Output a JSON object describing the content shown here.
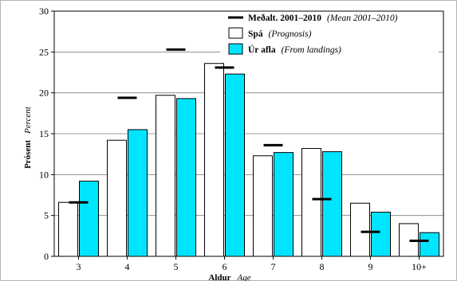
{
  "chart_data": {
    "type": "bar",
    "categories": [
      "3",
      "4",
      "5",
      "6",
      "7",
      "8",
      "9",
      "10+"
    ],
    "series": [
      {
        "name": "Spá",
        "name_en": "(Prognosis)",
        "color": "#ffffff",
        "values": [
          6.6,
          14.2,
          19.7,
          23.6,
          12.3,
          13.2,
          6.5,
          4.0
        ]
      },
      {
        "name": "Úr afla",
        "name_en": "(From landings)",
        "color": "#00e5ff",
        "values": [
          9.2,
          15.5,
          19.3,
          22.3,
          12.7,
          12.8,
          5.4,
          2.9
        ]
      }
    ],
    "mean_marker": {
      "name": "Meðalt. 2001–2010",
      "name_en": "(Mean 2001–2010)",
      "color": "#000000",
      "values": [
        6.6,
        19.4,
        25.3,
        23.1,
        13.6,
        7.0,
        3.0,
        1.9
      ]
    },
    "ylim": [
      0,
      30
    ],
    "yticks": [
      0,
      5,
      10,
      15,
      20,
      25,
      30
    ],
    "xlabel": "Aldur",
    "xlabel_en": "Age",
    "ylabel": "Prósent",
    "ylabel_en": "Percent",
    "grid": true,
    "legend_position": "top-right"
  }
}
